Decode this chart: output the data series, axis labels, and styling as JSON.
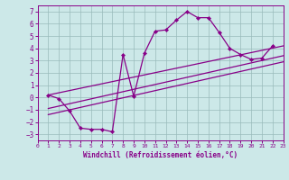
{
  "xlabel": "Windchill (Refroidissement éolien,°C)",
  "xlim": [
    0,
    23
  ],
  "ylim": [
    -3.5,
    7.5
  ],
  "xticks": [
    0,
    1,
    2,
    3,
    4,
    5,
    6,
    7,
    8,
    9,
    10,
    11,
    12,
    13,
    14,
    15,
    16,
    17,
    18,
    19,
    20,
    21,
    22,
    23
  ],
  "yticks": [
    -3,
    -2,
    -1,
    0,
    1,
    2,
    3,
    4,
    5,
    6,
    7
  ],
  "bg_color": "#cce8e8",
  "line_color": "#880088",
  "grid_color": "#99bbbb",
  "series1_x": [
    1,
    2,
    3,
    4,
    5,
    6,
    7,
    8,
    9,
    10,
    11,
    12,
    13,
    14,
    15,
    16,
    17,
    18,
    19,
    20,
    21,
    22
  ],
  "series1_y": [
    0.2,
    -0.1,
    -1.1,
    -2.5,
    -2.6,
    -2.6,
    -2.8,
    3.5,
    0.1,
    3.6,
    5.4,
    5.5,
    6.3,
    7.0,
    6.5,
    6.5,
    5.3,
    4.0,
    3.5,
    3.1,
    3.2,
    4.2
  ],
  "line2_x": [
    1,
    23
  ],
  "line2_y": [
    0.2,
    4.2
  ],
  "line3_x": [
    1,
    23
  ],
  "line3_y": [
    -0.9,
    3.4
  ],
  "line4_x": [
    1,
    23
  ],
  "line4_y": [
    -1.4,
    2.9
  ]
}
